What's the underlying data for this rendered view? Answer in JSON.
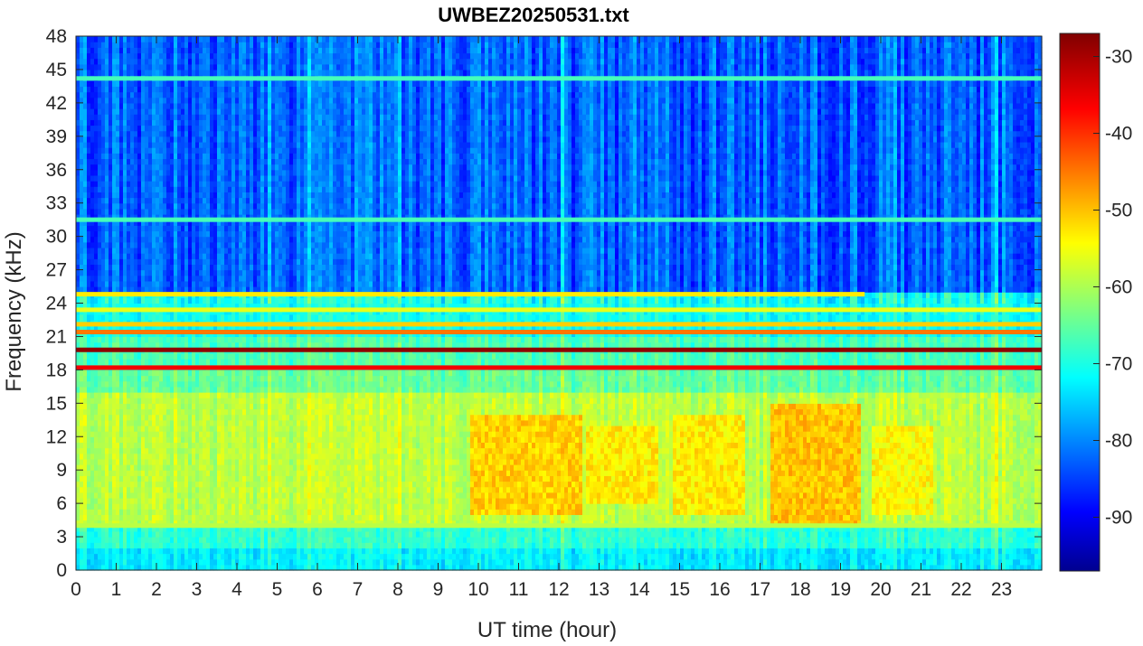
{
  "chart_data": {
    "type": "heatmap",
    "title": "UWBEZ20250531.txt",
    "xlabel": "UT time (hour)",
    "ylabel": "Frequency (kHz)",
    "x_ticks": [
      "0",
      "1",
      "2",
      "3",
      "4",
      "5",
      "6",
      "7",
      "8",
      "9",
      "10",
      "11",
      "12",
      "13",
      "14",
      "15",
      "16",
      "17",
      "18",
      "19",
      "20",
      "21",
      "22",
      "23"
    ],
    "y_ticks": [
      "0",
      "3",
      "6",
      "9",
      "12",
      "15",
      "18",
      "21",
      "24",
      "27",
      "30",
      "33",
      "36",
      "39",
      "42",
      "45",
      "48"
    ],
    "xlim": [
      0,
      24
    ],
    "ylim": [
      0,
      48
    ],
    "colorbar": {
      "ticks": [
        "-30",
        "-40",
        "-50",
        "-60",
        "-70",
        "-80",
        "-90"
      ],
      "range": [
        -97,
        -27
      ],
      "colormap": "jet"
    },
    "background_levels_db": [
      {
        "freq_range_khz": [
          0,
          2
        ],
        "level": -72
      },
      {
        "freq_range_khz": [
          2,
          4
        ],
        "level": -68
      },
      {
        "freq_range_khz": [
          4,
          16
        ],
        "level": -58
      },
      {
        "freq_range_khz": [
          16,
          18
        ],
        "level": -64
      },
      {
        "freq_range_khz": [
          18,
          21
        ],
        "level": -66
      },
      {
        "freq_range_khz": [
          21,
          25
        ],
        "level": -70
      },
      {
        "freq_range_khz": [
          25,
          48
        ],
        "level": -82
      }
    ],
    "enhanced_regions": [
      {
        "time_range_h": [
          9.8,
          12.6
        ],
        "freq_range_khz": [
          5,
          14
        ],
        "level": -50
      },
      {
        "time_range_h": [
          12.7,
          14.5
        ],
        "freq_range_khz": [
          6,
          13
        ],
        "level": -52
      },
      {
        "time_range_h": [
          14.8,
          16.6
        ],
        "freq_range_khz": [
          5,
          14
        ],
        "level": -52
      },
      {
        "time_range_h": [
          17.3,
          19.5
        ],
        "freq_range_khz": [
          4,
          15
        ],
        "level": -49
      },
      {
        "time_range_h": [
          19.8,
          21.3
        ],
        "freq_range_khz": [
          5,
          13
        ],
        "level": -53
      }
    ],
    "narrowband_lines": [
      {
        "freq_khz": 19.8,
        "time_range_h": [
          0,
          24
        ],
        "level": -28
      },
      {
        "freq_khz": 18.2,
        "time_range_h": [
          0,
          24
        ],
        "level": -35
      },
      {
        "freq_khz": 21.4,
        "time_range_h": [
          0,
          24
        ],
        "level": -44
      },
      {
        "freq_khz": 22.1,
        "time_range_h": [
          0,
          24
        ],
        "level": -50
      },
      {
        "freq_khz": 23.4,
        "time_range_h": [
          0,
          24
        ],
        "level": -55
      },
      {
        "freq_khz": 24.8,
        "time_range_h": [
          0,
          19.6
        ],
        "level": -52
      },
      {
        "freq_khz": 4.0,
        "time_range_h": [
          0,
          24
        ],
        "level": -58
      },
      {
        "freq_khz": 44.2,
        "time_range_h": [
          0,
          24
        ],
        "level": -66
      },
      {
        "freq_khz": 31.5,
        "time_range_h": [
          0,
          24
        ],
        "level": -66
      }
    ]
  }
}
